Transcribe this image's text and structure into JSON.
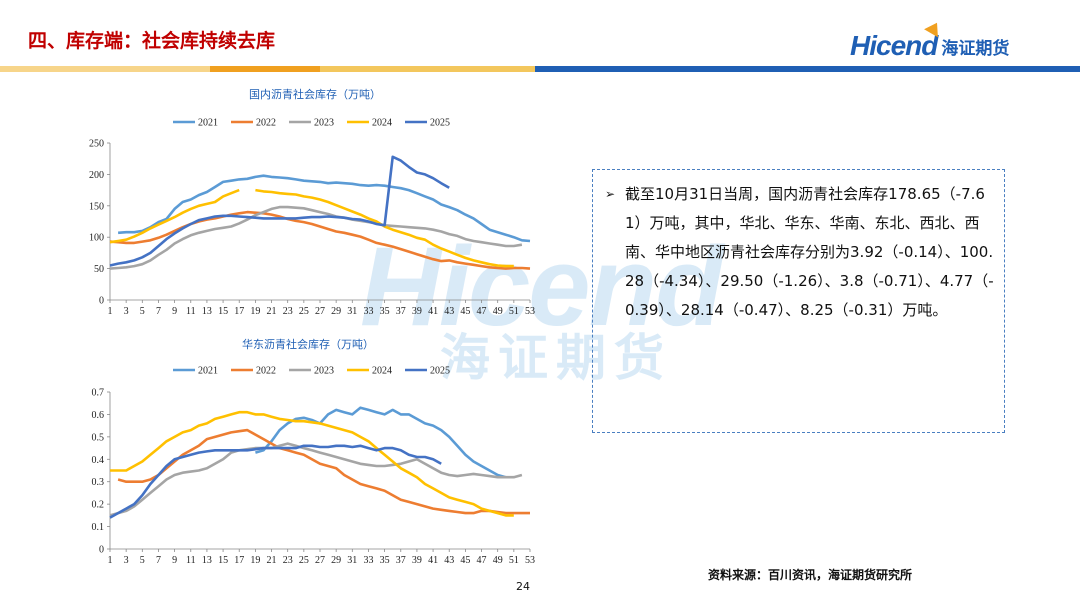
{
  "header": {
    "title": "四、库存端：社会库持续去库"
  },
  "logo": {
    "brand_en": "Hicend",
    "brand_cn": "海证期货"
  },
  "watermark": {
    "en": "Hicend",
    "cn": "海证期货"
  },
  "textbox": {
    "bullet": "➢",
    "text": "截至10月31日当周，国内沥青社会库存178.65（-7.61）万吨，其中，华北、华东、华南、东北、西北、西南、华中地区沥青社会库存分别为3.92（-0.14）、100.28（-4.34）、29.50（-1.26）、3.8（-0.71）、4.77（-0.39）、28.14（-0.47）、8.25（-0.31）万吨。"
  },
  "source": "资料来源：百川资讯，海证期货研究所",
  "page_number": "24",
  "colors": {
    "title": "#c00000",
    "brand": "#1f5fb4",
    "s2021": "#5b9bd5",
    "s2022": "#ed7d31",
    "s2023": "#a5a5a5",
    "s2024": "#ffc000",
    "s2025": "#4472c4"
  },
  "chart_data": [
    {
      "type": "line",
      "title": "国内沥青社会库存（万吨）",
      "xlabel": "",
      "ylabel": "",
      "ylim": [
        0,
        250
      ],
      "yticks": [
        0,
        50,
        100,
        150,
        200,
        250
      ],
      "xticks": [
        "1",
        "3",
        "5",
        "7",
        "9",
        "11",
        "13",
        "15",
        "17",
        "19",
        "21",
        "23",
        "25",
        "27",
        "29",
        "31",
        "33",
        "35",
        "37",
        "39",
        "41",
        "43",
        "45",
        "47",
        "49",
        "51",
        "53"
      ],
      "xlim": [
        1,
        53
      ],
      "series": [
        {
          "name": "2021",
          "x_start": 2,
          "values": [
            107,
            108,
            108,
            110,
            116,
            124,
            129,
            145,
            156,
            160,
            167,
            172,
            180,
            188,
            190,
            192,
            193,
            196,
            198,
            196,
            195,
            194,
            192,
            190,
            189,
            188,
            186,
            187,
            186,
            185,
            183,
            182,
            183,
            182,
            180,
            178,
            175,
            170,
            165,
            160,
            152,
            148,
            143,
            136,
            130,
            121,
            112,
            108,
            104,
            100,
            95,
            94
          ]
        },
        {
          "name": "2022",
          "x_start": 1,
          "values": [
            93,
            92,
            91,
            91,
            93,
            95,
            99,
            104,
            110,
            116,
            121,
            125,
            128,
            130,
            133,
            136,
            138,
            140,
            139,
            138,
            136,
            133,
            129,
            126,
            124,
            121,
            117,
            113,
            109,
            107,
            104,
            101,
            96,
            91,
            88,
            85,
            81,
            77,
            73,
            69,
            65,
            62,
            63,
            60,
            58,
            56,
            54,
            52,
            51,
            50,
            51,
            51,
            50
          ]
        },
        {
          "name": "2023",
          "x_start": 1,
          "values": [
            50,
            51,
            52,
            54,
            57,
            63,
            72,
            80,
            90,
            97,
            103,
            107,
            110,
            113,
            115,
            117,
            122,
            128,
            135,
            140,
            145,
            148,
            148,
            147,
            146,
            143,
            140,
            137,
            133,
            131,
            128,
            126,
            124,
            122,
            119,
            118,
            117,
            116,
            115,
            114,
            112,
            109,
            105,
            102,
            97,
            94,
            92,
            90,
            88,
            86,
            86,
            88
          ]
        },
        {
          "name": "2024",
          "x_start": 1,
          "values": [
            92,
            94,
            96,
            101,
            107,
            114,
            120,
            126,
            132,
            139,
            145,
            150,
            153,
            156,
            165,
            170,
            175,
            null,
            175,
            173,
            172,
            170,
            169,
            168,
            165,
            163,
            160,
            156,
            151,
            146,
            141,
            136,
            130,
            125,
            117,
            112,
            108,
            104,
            99,
            96,
            88,
            82,
            77,
            72,
            67,
            63,
            60,
            57,
            55,
            54,
            54
          ]
        },
        {
          "name": "2025",
          "x_start": 1,
          "values": [
            55,
            58,
            60,
            63,
            68,
            75,
            86,
            97,
            106,
            114,
            121,
            127,
            130,
            133,
            134,
            134,
            133,
            132,
            131,
            130,
            130,
            130,
            130,
            130,
            131,
            132,
            132,
            133,
            132,
            131,
            129,
            128,
            125,
            121,
            119,
            228,
            222,
            212,
            203,
            200,
            194,
            186,
            178.65
          ]
        }
      ]
    },
    {
      "type": "line",
      "title": "华东沥青社会库存（万吨）",
      "xlabel": "",
      "ylabel": "",
      "ylim": [
        0,
        0.7
      ],
      "yticks": [
        0,
        0.1,
        0.2,
        0.3,
        0.4,
        0.5,
        0.6,
        0.7
      ],
      "xticks": [
        "1",
        "3",
        "5",
        "7",
        "9",
        "11",
        "13",
        "15",
        "17",
        "19",
        "21",
        "23",
        "25",
        "27",
        "29",
        "31",
        "33",
        "35",
        "37",
        "39",
        "41",
        "43",
        "45",
        "47",
        "49",
        "51",
        "53"
      ],
      "xlim": [
        1,
        53
      ],
      "series": [
        {
          "name": "2021",
          "x_start": 19,
          "values": [
            0.43,
            0.44,
            0.48,
            0.53,
            0.56,
            0.58,
            0.585,
            0.575,
            0.56,
            0.6,
            0.62,
            0.61,
            0.6,
            0.63,
            0.62,
            0.61,
            0.6,
            0.62,
            0.6,
            0.6,
            0.58,
            0.56,
            0.55,
            0.53,
            0.5,
            0.46,
            0.42,
            0.39,
            0.37,
            0.35,
            0.33,
            0.32
          ]
        },
        {
          "name": "2022",
          "x_start": 2,
          "values": [
            0.31,
            0.3,
            0.3,
            0.3,
            0.31,
            0.33,
            0.36,
            0.39,
            0.42,
            0.44,
            0.46,
            0.49,
            0.5,
            0.51,
            0.52,
            0.525,
            0.53,
            0.51,
            0.49,
            0.47,
            0.45,
            0.44,
            0.43,
            0.42,
            0.4,
            0.38,
            0.37,
            0.36,
            0.33,
            0.31,
            0.29,
            0.28,
            0.27,
            0.26,
            0.24,
            0.22,
            0.21,
            0.2,
            0.19,
            0.18,
            0.175,
            0.17,
            0.165,
            0.16,
            0.16,
            0.17,
            0.17,
            0.165,
            0.16,
            0.16,
            0.16,
            0.16
          ]
        },
        {
          "name": "2023",
          "x_start": 1,
          "values": [
            0.15,
            0.16,
            0.17,
            0.19,
            0.22,
            0.25,
            0.28,
            0.31,
            0.33,
            0.34,
            0.345,
            0.35,
            0.36,
            0.38,
            0.4,
            0.43,
            0.44,
            0.445,
            0.45,
            0.45,
            0.45,
            0.46,
            0.47,
            0.46,
            0.45,
            0.44,
            0.43,
            0.42,
            0.41,
            0.4,
            0.39,
            0.38,
            0.375,
            0.37,
            0.37,
            0.375,
            0.38,
            0.39,
            0.4,
            0.38,
            0.36,
            0.34,
            0.33,
            0.325,
            0.33,
            0.335,
            0.33,
            0.325,
            0.32,
            0.32,
            0.32,
            0.33
          ]
        },
        {
          "name": "2024",
          "x_start": 1,
          "values": [
            0.35,
            0.35,
            0.35,
            0.37,
            0.39,
            0.42,
            0.45,
            0.48,
            0.5,
            0.52,
            0.53,
            0.55,
            0.56,
            0.58,
            0.59,
            0.6,
            0.61,
            0.61,
            0.6,
            0.6,
            0.59,
            0.58,
            0.575,
            0.57,
            0.57,
            0.565,
            0.56,
            0.55,
            0.54,
            0.53,
            0.52,
            0.5,
            0.48,
            0.45,
            0.42,
            0.39,
            0.36,
            0.34,
            0.32,
            0.29,
            0.27,
            0.25,
            0.23,
            0.22,
            0.21,
            0.2,
            0.18,
            0.17,
            0.16,
            0.15,
            0.15
          ]
        },
        {
          "name": "2025",
          "x_start": 1,
          "values": [
            0.14,
            0.16,
            0.18,
            0.2,
            0.24,
            0.29,
            0.33,
            0.37,
            0.4,
            0.41,
            0.42,
            0.43,
            0.435,
            0.44,
            0.44,
            0.44,
            0.44,
            0.44,
            0.445,
            0.45,
            0.45,
            0.45,
            0.45,
            0.45,
            0.46,
            0.46,
            0.455,
            0.455,
            0.46,
            0.46,
            0.455,
            0.46,
            0.45,
            0.44,
            0.45,
            0.45,
            0.44,
            0.42,
            0.41,
            0.41,
            0.4,
            0.38
          ]
        }
      ]
    }
  ]
}
